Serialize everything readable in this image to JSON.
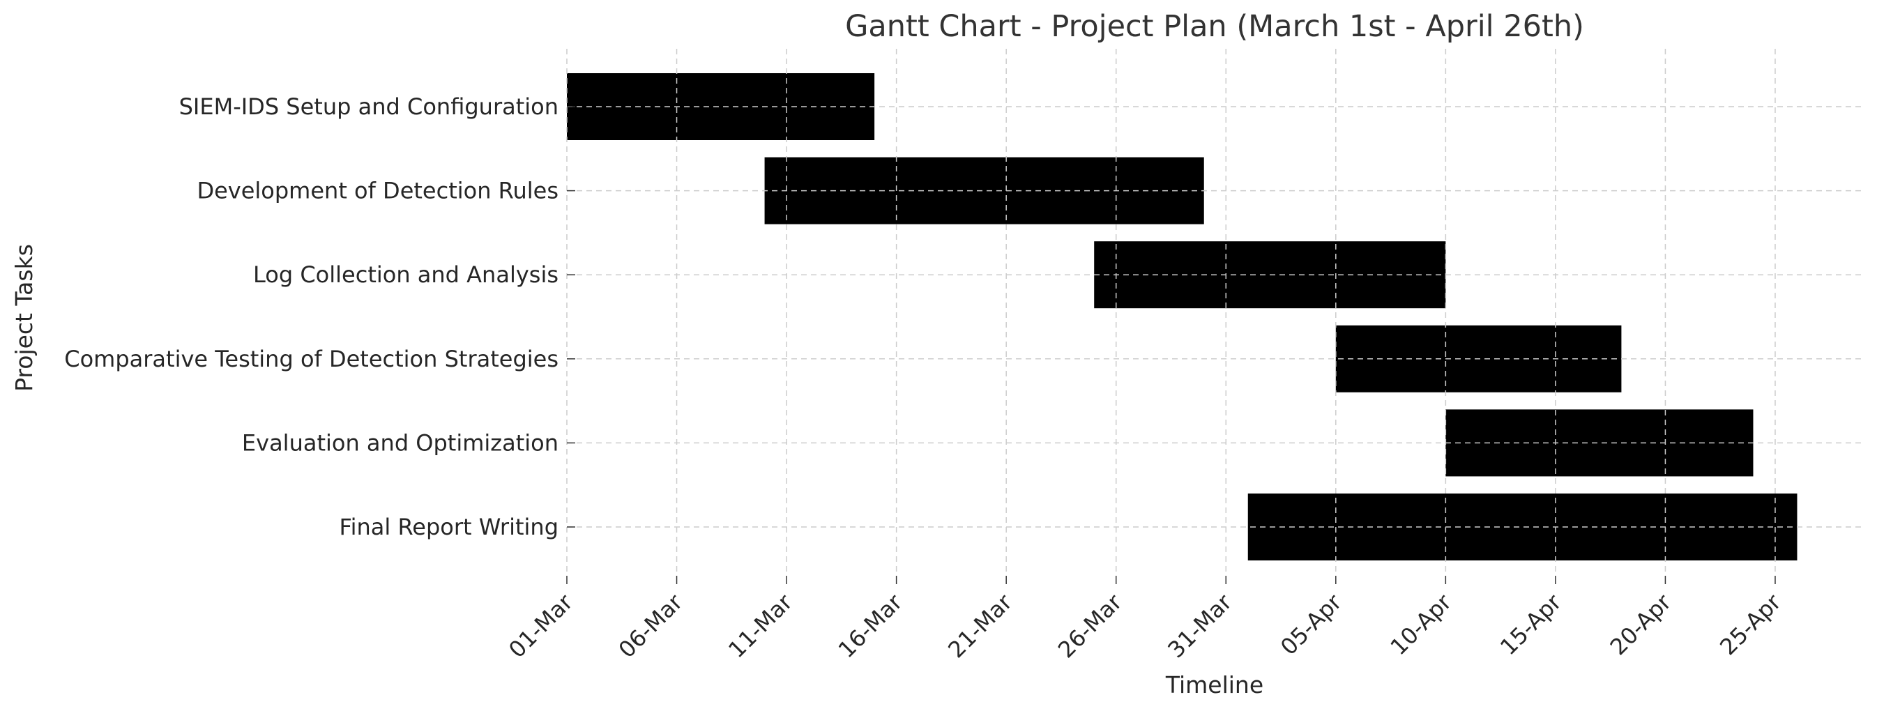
{
  "chart_data": {
    "type": "gantt",
    "title": "Gantt Chart - Project Plan (March 1st - April 26th)",
    "xlabel": "Timeline",
    "ylabel": "Project Tasks",
    "x_tick_labels": [
      "01-Mar",
      "06-Mar",
      "11-Mar",
      "16-Mar",
      "21-Mar",
      "26-Mar",
      "31-Mar",
      "05-Apr",
      "10-Apr",
      "15-Apr",
      "20-Apr",
      "25-Apr"
    ],
    "x_tick_dates": [
      "2024-03-01",
      "2024-03-06",
      "2024-03-11",
      "2024-03-16",
      "2024-03-21",
      "2024-03-26",
      "2024-03-31",
      "2024-04-05",
      "2024-04-10",
      "2024-04-15",
      "2024-04-20",
      "2024-04-25"
    ],
    "xlim": [
      "2024-03-01",
      "2024-04-29"
    ],
    "tasks": [
      {
        "name": "SIEM-IDS Setup and Configuration",
        "start": "2024-03-01",
        "end": "2024-03-15"
      },
      {
        "name": "Development of Detection Rules",
        "start": "2024-03-10",
        "end": "2024-03-30"
      },
      {
        "name": "Log Collection and Analysis",
        "start": "2024-03-25",
        "end": "2024-04-10"
      },
      {
        "name": "Comparative Testing of Detection Strategies",
        "start": "2024-04-05",
        "end": "2024-04-18"
      },
      {
        "name": "Evaluation and Optimization",
        "start": "2024-04-10",
        "end": "2024-04-24"
      },
      {
        "name": "Final Report Writing",
        "start": "2024-04-01",
        "end": "2024-04-26"
      }
    ],
    "bar_color": "#000000",
    "grid": true,
    "grid_style": "dashed",
    "grid_color": "#cccccc",
    "legend": false
  }
}
